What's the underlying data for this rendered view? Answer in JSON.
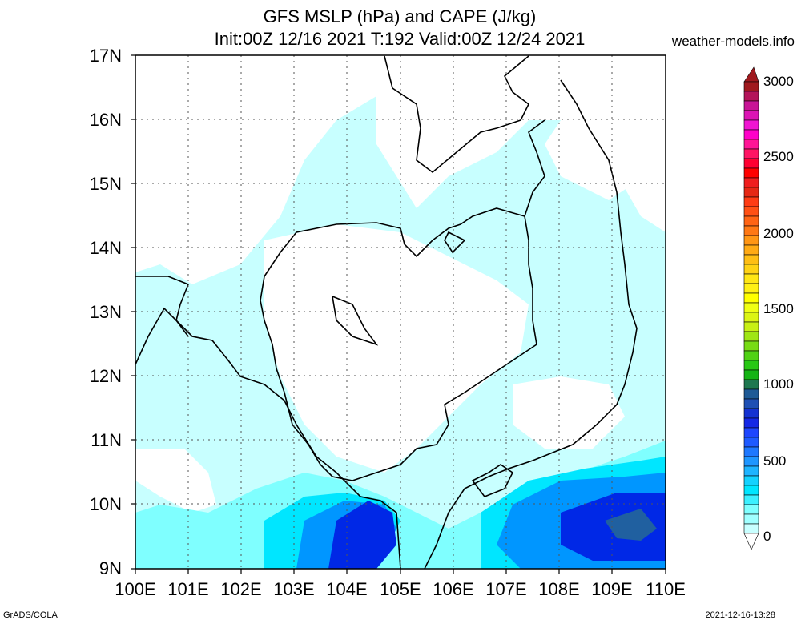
{
  "title_line1": "GFS MSLP (hPa) and CAPE (J/kg)",
  "title_line2": "Init:00Z 12/16 2021 T:192 Valid:00Z 12/24 2021",
  "site": "weather-models.info",
  "footer_left": "GrADS/COLA",
  "footer_right": "2021-12-16-13:28",
  "lat_labels": [
    "17N",
    "16N",
    "15N",
    "14N",
    "13N",
    "12N",
    "11N",
    "10N",
    "9N"
  ],
  "lon_labels": [
    "100E",
    "101E",
    "102E",
    "103E",
    "104E",
    "105E",
    "106E",
    "107E",
    "108E",
    "109E",
    "110E"
  ],
  "colorbar_labels": [
    "3000",
    "2500",
    "2000",
    "1500",
    "1000",
    "500",
    "0"
  ],
  "colors": {
    "cape_low": "#c8ffff",
    "cape_mid": "#7fffff",
    "cape_high": "#00e6ff",
    "cape_blue": "#0096ff",
    "cape_deep": "#0028e6",
    "cape_dark": "#2060a0"
  }
}
